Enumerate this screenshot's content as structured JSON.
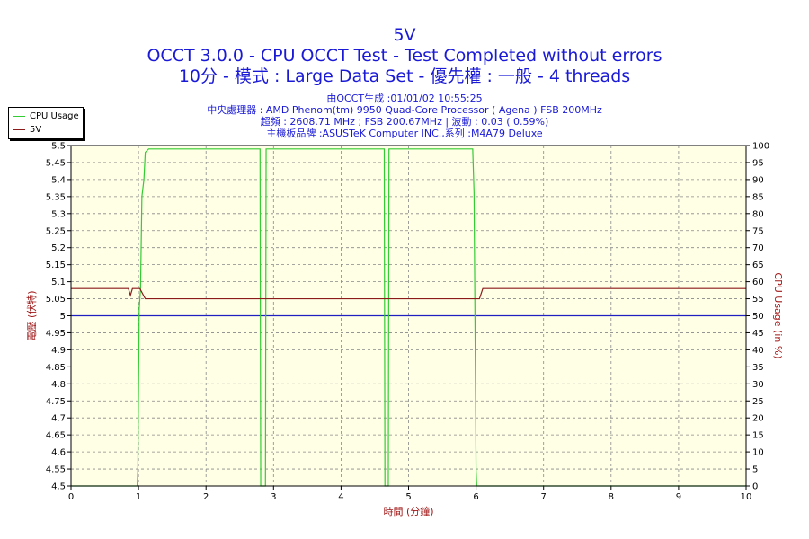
{
  "chart_data": {
    "type": "line",
    "title": "5V",
    "subtitle_lines": [
      "OCCT 3.0.0 - CPU OCCT Test - Test Completed without errors",
      "10分 - 模式 : Large Data Set - 優先權 : 一般 - 4 threads"
    ],
    "info_lines": [
      "由OCCT生成 :01/01/02 10:55:25",
      "中央處理器 : AMD Phenom(tm) 9950 Quad-Core Processor ( Agena ) FSB 200MHz",
      "超頻 : 2608.71 MHz ; FSB 200.67MHz | 波動 : 0.03 ( 0.59%)",
      "主機板品牌 :ASUSTeK Computer INC.,系列 :M4A79 Deluxe"
    ],
    "xlabel": "時間 (分鐘)",
    "ylabel": "電壓 (伏特)",
    "y2label": "CPU Usage (in %)",
    "xlim": [
      0,
      10
    ],
    "ylim": [
      4.5,
      5.5
    ],
    "y2lim": [
      0,
      100
    ],
    "x_ticks": [
      "0",
      "1",
      "2",
      "3",
      "4",
      "5",
      "6",
      "7",
      "8",
      "9",
      "10"
    ],
    "y_ticks": [
      "5.5",
      "5.45",
      "5.4",
      "5.35",
      "5.3",
      "5.25",
      "5.2",
      "5.15",
      "5.1",
      "5.05",
      "5",
      "4.95",
      "4.9",
      "4.85",
      "4.8",
      "4.75",
      "4.7",
      "4.65",
      "4.6",
      "4.55",
      "4.5"
    ],
    "y2_ticks": [
      "100",
      "95",
      "90",
      "85",
      "80",
      "75",
      "70",
      "65",
      "60",
      "55",
      "50",
      "45",
      "40",
      "35",
      "30",
      "25",
      "20",
      "15",
      "10",
      "5",
      "0"
    ],
    "grid": true,
    "legend_position": "top-left",
    "reference_line": {
      "y": 5.0,
      "color": "#2020c0"
    },
    "series": [
      {
        "name": "CPU Usage",
        "axis": "right",
        "color": "#33cc33",
        "points": [
          [
            0,
            0
          ],
          [
            0.98,
            0
          ],
          [
            0.99,
            5
          ],
          [
            1.01,
            52
          ],
          [
            1.03,
            58
          ],
          [
            1.05,
            85
          ],
          [
            1.08,
            90
          ],
          [
            1.1,
            98
          ],
          [
            1.15,
            99
          ],
          [
            1.5,
            99
          ],
          [
            2.0,
            99
          ],
          [
            2.5,
            99
          ],
          [
            2.8,
            99
          ],
          [
            2.81,
            0
          ],
          [
            2.88,
            0
          ],
          [
            2.89,
            99
          ],
          [
            3.5,
            99
          ],
          [
            4.0,
            99
          ],
          [
            4.64,
            99
          ],
          [
            4.65,
            0
          ],
          [
            4.7,
            0
          ],
          [
            4.71,
            99
          ],
          [
            5.3,
            99
          ],
          [
            5.95,
            99
          ],
          [
            5.97,
            86
          ],
          [
            6.0,
            5
          ],
          [
            6.01,
            0
          ],
          [
            10,
            0
          ]
        ]
      },
      {
        "name": "5V",
        "axis": "left",
        "color": "#8b1a1a",
        "points": [
          [
            0,
            5.08
          ],
          [
            0.85,
            5.08
          ],
          [
            0.88,
            5.06
          ],
          [
            0.91,
            5.08
          ],
          [
            1.02,
            5.08
          ],
          [
            1.1,
            5.05
          ],
          [
            6.05,
            5.05
          ],
          [
            6.1,
            5.08
          ],
          [
            10,
            5.08
          ]
        ]
      }
    ]
  }
}
